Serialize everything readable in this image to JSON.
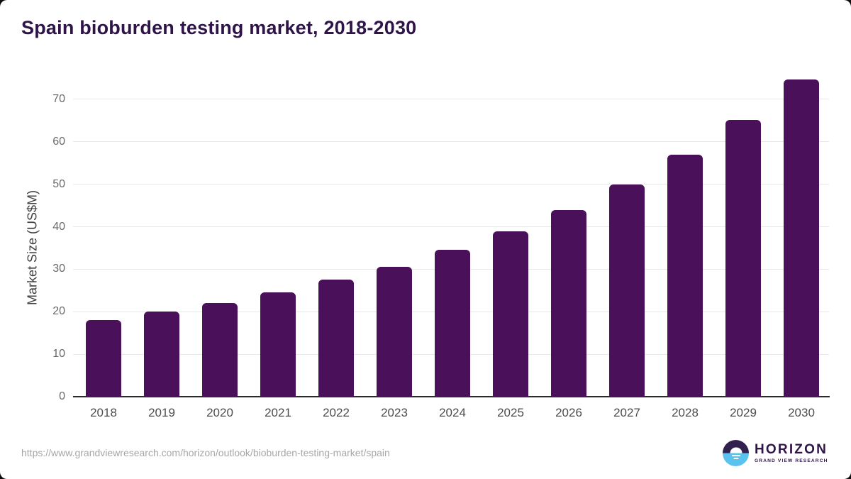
{
  "page": {
    "title": "Spain bioburden testing market, 2018-2030"
  },
  "chart_data": {
    "type": "bar",
    "title": "Spain bioburden testing market, 2018-2030",
    "categories": [
      "2018",
      "2019",
      "2020",
      "2021",
      "2022",
      "2023",
      "2024",
      "2025",
      "2026",
      "2027",
      "2028",
      "2029",
      "2030"
    ],
    "values": [
      18,
      20,
      22,
      24.5,
      27.5,
      30.6,
      34.6,
      39,
      44,
      50,
      57,
      65.2,
      74.7
    ],
    "xlabel": "",
    "ylabel": "Market Size (US$M)",
    "yticks": [
      0,
      10,
      20,
      30,
      40,
      50,
      60,
      70
    ],
    "ylim": [
      0,
      78
    ],
    "grid": "horizontal",
    "legend": "none",
    "bar_color": "#4a105a"
  },
  "footer": {
    "source_url": "https://www.grandviewresearch.com/horizon/outlook/bioburden-testing-market/spain",
    "logo": {
      "brand": "HORIZON",
      "sub_brand": "GRAND VIEW RESEARCH"
    }
  },
  "colors": {
    "title_text": "#2e1449",
    "bar": "#4a105a",
    "gridline": "#e8e8e8",
    "axis_line": "#2b2b2b",
    "y_tick_text": "#6a6a6a",
    "x_tick_text": "#4c4c4c",
    "source_text": "#a6a6a6",
    "logo_purple": "#32204e",
    "logo_blue": "#5ac2ef"
  }
}
